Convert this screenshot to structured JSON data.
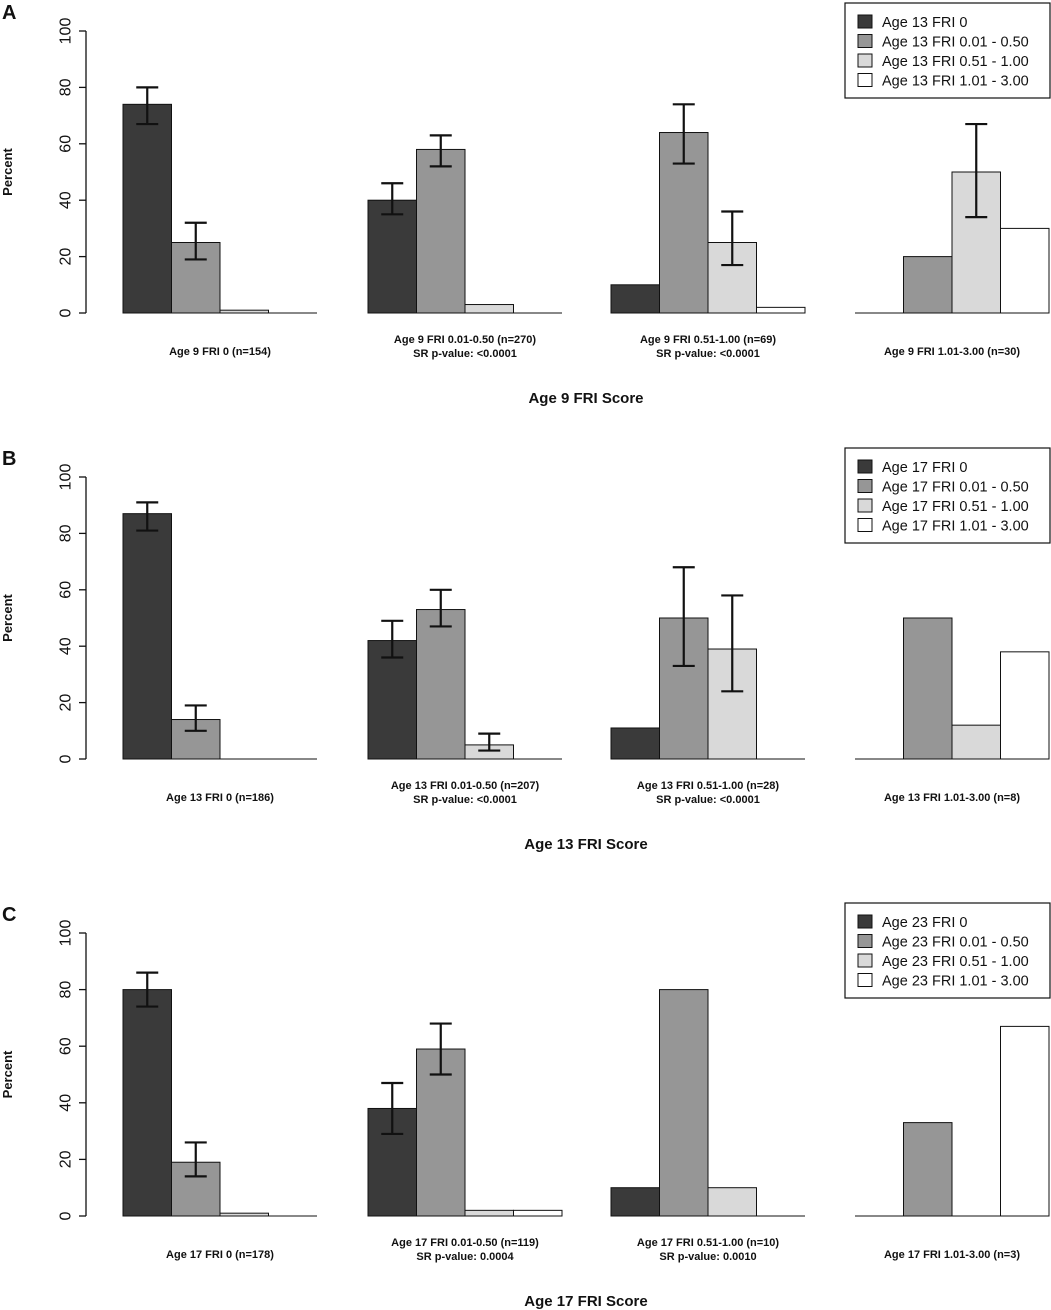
{
  "colors": {
    "s0": "#3a3a3a",
    "s1": "#969696",
    "s2": "#d9d9d9",
    "s3": "#ffffff",
    "stroke": "#111111"
  },
  "chart_data": [
    {
      "type": "bar",
      "panel": "A",
      "ylabel": "Percent",
      "xlabel": "Age 9 FRI Score",
      "ylim": [
        0,
        100
      ],
      "yticks": [
        0,
        20,
        40,
        60,
        80,
        100
      ],
      "legend": [
        "Age 13 FRI 0",
        "Age 13 FRI 0.01 - 0.50",
        "Age 13 FRI 0.51 - 1.00",
        "Age 13 FRI 1.01 - 3.00"
      ],
      "groups": [
        {
          "label": "Age 9 FRI 0 (n=154)",
          "sublabel": "",
          "values": [
            74,
            25,
            1,
            0
          ],
          "errors": [
            [
              67,
              80
            ],
            [
              19,
              32
            ],
            null,
            null
          ]
        },
        {
          "label": "Age 9 FRI 0.01-0.50 (n=270)",
          "sublabel": "SR p-value: <0.0001",
          "values": [
            40,
            58,
            3,
            0
          ],
          "errors": [
            [
              35,
              46
            ],
            [
              52,
              63
            ],
            null,
            null
          ]
        },
        {
          "label": "Age 9 FRI 0.51-1.00 (n=69)",
          "sublabel": "SR p-value: <0.0001",
          "values": [
            10,
            64,
            25,
            2
          ],
          "errors": [
            null,
            [
              53,
              74
            ],
            [
              17,
              36
            ],
            null
          ]
        },
        {
          "label": "Age 9 FRI 1.01-3.00 (n=30)",
          "sublabel": "",
          "values": [
            0,
            20,
            50,
            30
          ],
          "errors": [
            null,
            null,
            [
              34,
              67
            ],
            null
          ]
        }
      ]
    },
    {
      "type": "bar",
      "panel": "B",
      "ylabel": "Percent",
      "xlabel": "Age 13 FRI Score",
      "ylim": [
        0,
        100
      ],
      "yticks": [
        0,
        20,
        40,
        60,
        80,
        100
      ],
      "legend": [
        "Age 17 FRI 0",
        "Age 17 FRI 0.01 - 0.50",
        "Age 17 FRI 0.51 - 1.00",
        "Age 17 FRI 1.01 - 3.00"
      ],
      "groups": [
        {
          "label": "Age 13 FRI 0 (n=186)",
          "sublabel": "",
          "values": [
            87,
            14,
            0,
            0
          ],
          "errors": [
            [
              81,
              91
            ],
            [
              10,
              19
            ],
            null,
            null
          ]
        },
        {
          "label": "Age 13 FRI 0.01-0.50 (n=207)",
          "sublabel": "SR p-value: <0.0001",
          "values": [
            42,
            53,
            5,
            0
          ],
          "errors": [
            [
              36,
              49
            ],
            [
              47,
              60
            ],
            [
              3,
              9
            ],
            null
          ]
        },
        {
          "label": "Age 13 FRI 0.51-1.00 (n=28)",
          "sublabel": "SR p-value: <0.0001",
          "values": [
            11,
            50,
            39,
            0
          ],
          "errors": [
            null,
            [
              33,
              68
            ],
            [
              24,
              58
            ],
            null
          ]
        },
        {
          "label": "Age 13 FRI 1.01-3.00 (n=8)",
          "sublabel": "",
          "values": [
            0,
            50,
            12,
            38
          ],
          "errors": [
            null,
            null,
            null,
            null
          ]
        }
      ]
    },
    {
      "type": "bar",
      "panel": "C",
      "ylabel": "Percent",
      "xlabel": "Age 17 FRI Score",
      "ylim": [
        0,
        100
      ],
      "yticks": [
        0,
        20,
        40,
        60,
        80,
        100
      ],
      "legend": [
        "Age 23 FRI 0",
        "Age 23 FRI 0.01 - 0.50",
        "Age 23 FRI 0.51 - 1.00",
        "Age 23 FRI 1.01 - 3.00"
      ],
      "groups": [
        {
          "label": "Age 17 FRI 0 (n=178)",
          "sublabel": "",
          "values": [
            80,
            19,
            1,
            0
          ],
          "errors": [
            [
              74,
              86
            ],
            [
              14,
              26
            ],
            null,
            null
          ]
        },
        {
          "label": "Age 17 FRI 0.01-0.50 (n=119)",
          "sublabel": "SR p-value: 0.0004",
          "values": [
            38,
            59,
            2,
            2
          ],
          "errors": [
            [
              29,
              47
            ],
            [
              50,
              68
            ],
            null,
            null
          ]
        },
        {
          "label": "Age 17 FRI 0.51-1.00 (n=10)",
          "sublabel": "SR p-value: 0.0010",
          "values": [
            10,
            80,
            10,
            0
          ],
          "errors": [
            null,
            null,
            null,
            null
          ]
        },
        {
          "label": "Age 17 FRI 1.01-3.00 (n=3)",
          "sublabel": "",
          "values": [
            0,
            33,
            0,
            67
          ],
          "errors": [
            null,
            null,
            null,
            null
          ]
        }
      ]
    }
  ]
}
